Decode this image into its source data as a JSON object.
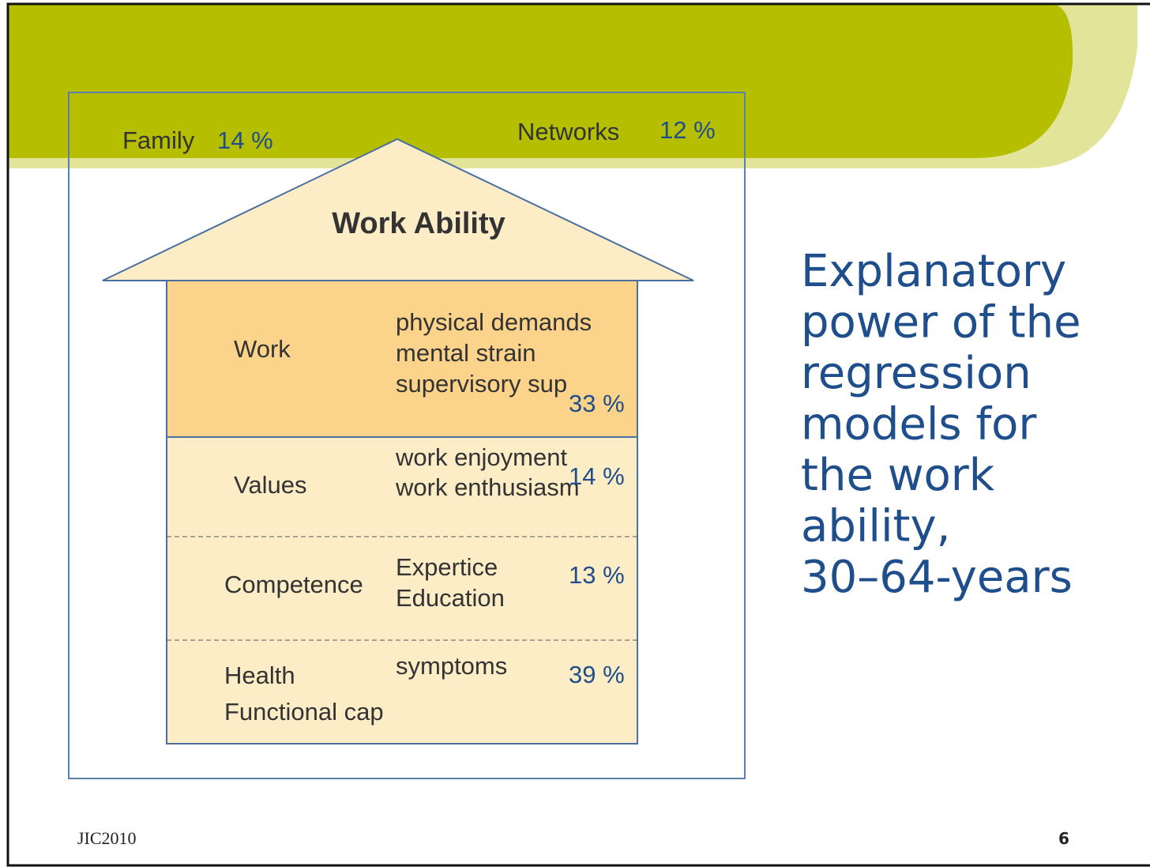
{
  "header": {
    "family": {
      "label": "Family",
      "value": "14 %"
    },
    "networks": {
      "label": "Networks",
      "value": "12 %"
    }
  },
  "house": {
    "title": "Work Ability",
    "rows": [
      {
        "labels": [
          "Work"
        ],
        "items": [
          "physical demands",
          "mental strain",
          "supervisory sup"
        ],
        "value": "33 %"
      },
      {
        "labels": [
          "Values"
        ],
        "items": [
          "work enjoyment",
          "work enthusiasm"
        ],
        "value": "14 %"
      },
      {
        "labels": [
          "Competence"
        ],
        "items": [
          "Expertice",
          "Education"
        ],
        "value": "13 %"
      },
      {
        "labels": [
          "Health",
          "Functional cap"
        ],
        "items": [
          "symptoms"
        ],
        "value": "39 %"
      }
    ]
  },
  "side_title": [
    "Explanatory",
    "power of the",
    "regression",
    "models for",
    "the work",
    "ability,",
    "30–64-years"
  ],
  "footer": {
    "left": "JIC2010",
    "page": "6"
  }
}
